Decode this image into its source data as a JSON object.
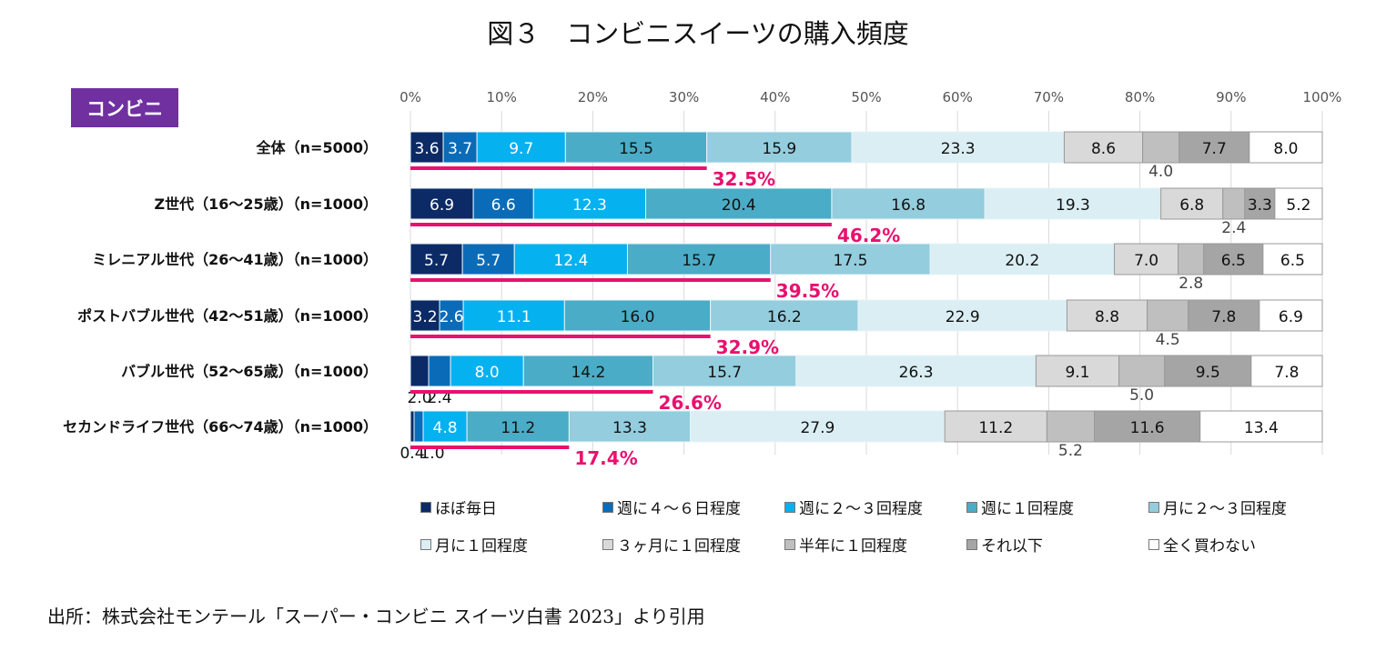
{
  "title": "図３　コンビニスイーツの購入頻度",
  "badge": "コンビニ",
  "source": "出所：株式会社モンテール「スーパー・コンビニ スイーツ白書 2023」より引用",
  "chart_data": {
    "type": "bar",
    "orientation": "horizontal-stacked-100",
    "xlim": [
      0,
      100
    ],
    "xticks": [
      "0%",
      "10%",
      "20%",
      "30%",
      "40%",
      "50%",
      "60%",
      "70%",
      "80%",
      "90%",
      "100%"
    ],
    "grid": true,
    "legend_position": "bottom",
    "categories": [
      "全体（n=5000）",
      "Z世代（16～25歳）（n=1000）",
      "ミレニアル世代（26～41歳）（n=1000）",
      "ポストバブル世代（42～51歳）（n=1000）",
      "バブル世代（52～65歳）（n=1000）",
      "セカンドライフ世代（66～74歳）（n=1000）"
    ],
    "series": [
      {
        "name": "ほぼ毎日",
        "color": "#0b2a66",
        "values": [
          3.6,
          6.9,
          5.7,
          3.2,
          2.0,
          0.4
        ]
      },
      {
        "name": "週に４～６日程度",
        "color": "#0a6cb8",
        "values": [
          3.7,
          6.6,
          5.7,
          2.6,
          2.4,
          1.0
        ]
      },
      {
        "name": "週に２～３回程度",
        "color": "#05b1ef",
        "values": [
          9.7,
          12.3,
          12.4,
          11.1,
          8.0,
          4.8
        ]
      },
      {
        "name": "週に１回程度",
        "color": "#4aacc6",
        "values": [
          15.5,
          20.4,
          15.7,
          16.0,
          14.2,
          11.2
        ]
      },
      {
        "name": "月に２～３回程度",
        "color": "#94cddd",
        "values": [
          15.9,
          16.8,
          17.5,
          16.2,
          15.7,
          13.3
        ]
      },
      {
        "name": "月に１回程度",
        "color": "#daeef4",
        "values": [
          23.3,
          19.3,
          20.2,
          22.9,
          26.3,
          27.9
        ]
      },
      {
        "name": "３ヶ月に１回程度",
        "color": "#d9d9d9",
        "values": [
          8.6,
          6.8,
          7.0,
          8.8,
          9.1,
          11.2
        ]
      },
      {
        "name": "半年に１回程度",
        "color": "#bfbfbf",
        "values": [
          4.0,
          2.4,
          2.8,
          4.5,
          5.0,
          5.2
        ]
      },
      {
        "name": "それ以下",
        "color": "#a5a5a5",
        "values": [
          7.7,
          3.3,
          6.5,
          7.8,
          9.5,
          11.6
        ]
      },
      {
        "name": "全く買わない",
        "color": "#ffffff",
        "values": [
          8.0,
          5.2,
          6.5,
          6.9,
          7.8,
          13.4
        ]
      }
    ],
    "weekly_or_more_totals": [
      "32.5%",
      "46.2%",
      "39.5%",
      "32.9%",
      "26.6%",
      "17.4%"
    ],
    "weekly_or_more_values": [
      32.5,
      46.2,
      39.5,
      32.9,
      26.6,
      17.4
    ],
    "highlight_color": "#e8116e"
  }
}
